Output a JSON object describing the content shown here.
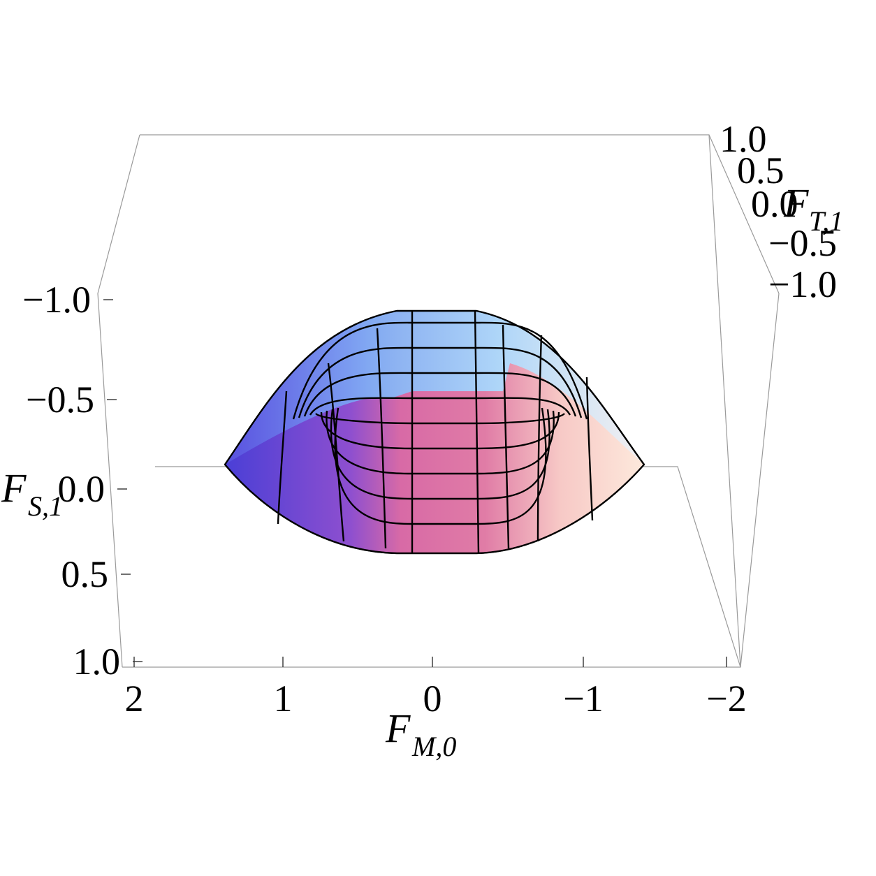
{
  "chart_data": {
    "type": "surface3d",
    "axes": {
      "x": {
        "label": "F",
        "subscript": "M,0",
        "ticks": [
          "2",
          "1",
          "0",
          "−1",
          "−2"
        ],
        "range": [
          -2,
          2
        ]
      },
      "y": {
        "label": "F",
        "subscript": "S,1",
        "ticks": [
          "−1.0",
          "−0.5",
          "0.0",
          "0.5",
          "1.0"
        ],
        "range": [
          -1,
          1
        ]
      },
      "z": {
        "label": "F",
        "subscript": "T,1",
        "ticks": [
          "1.0",
          "0.5",
          "0.0",
          "−0.5",
          "−1.0"
        ],
        "range": [
          -1,
          1
        ]
      }
    },
    "surface": {
      "description_shape": "dome",
      "colors": {
        "left": "#4a3fd6",
        "top": "#cfeaff",
        "center": "#d76aa6",
        "right": "#fbe6d8"
      }
    },
    "box": true,
    "legend": false
  }
}
